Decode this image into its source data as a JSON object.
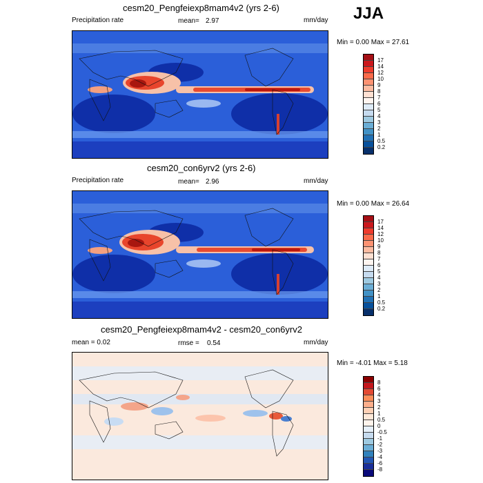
{
  "season": "JJA",
  "panels": [
    {
      "id": "exp",
      "title": "cesm20_Pengfeiexp8mam4v2 (yrs 2-6)",
      "left_label": "Precipitation rate",
      "mean_label": "mean=",
      "mean_value": "2.97",
      "units": "mm/day",
      "minmax": "Min =   0.00 Max =  27.61",
      "levels": [
        "17",
        "14",
        "12",
        "10",
        "9",
        "8",
        "7",
        "6",
        "5",
        "4",
        "3",
        "2",
        "1",
        "0.5",
        "0.2"
      ],
      "colors": [
        "#a50f15",
        "#cb181d",
        "#ef3b2c",
        "#fb6a4a",
        "#fc9272",
        "#fcbba1",
        "#fee0d2",
        "#fff5f0",
        "#deebf7",
        "#c6dbef",
        "#9ecae1",
        "#6baed6",
        "#4292c6",
        "#2171b5",
        "#08519c",
        "#08306b"
      ]
    },
    {
      "id": "ctl",
      "title": "cesm20_con6yrv2 (yrs 2-6)",
      "left_label": "Precipitation rate",
      "mean_label": "mean=",
      "mean_value": "2.96",
      "units": "mm/day",
      "minmax": "Min =   0.00 Max =  26.64",
      "levels": [
        "17",
        "14",
        "12",
        "10",
        "9",
        "8",
        "7",
        "6",
        "5",
        "4",
        "3",
        "2",
        "1",
        "0.5",
        "0.2"
      ],
      "colors": [
        "#a50f15",
        "#cb181d",
        "#ef3b2c",
        "#fb6a4a",
        "#fc9272",
        "#fcbba1",
        "#fee0d2",
        "#fff5f0",
        "#deebf7",
        "#c6dbef",
        "#9ecae1",
        "#6baed6",
        "#4292c6",
        "#2171b5",
        "#08519c",
        "#08306b"
      ]
    },
    {
      "id": "diff",
      "title": "cesm20_Pengfeiexp8mam4v2 - cesm20_con6yrv2",
      "left_label": "mean =   0.02",
      "mean_label": "rmse =",
      "mean_value": "0.54",
      "units": "mm/day",
      "minmax": "Min =  -4.01 Max =   5.18",
      "levels": [
        "8",
        "6",
        "4",
        "3",
        "2",
        "1",
        "0.5",
        "0",
        "-0.5",
        "-1",
        "-2",
        "-3",
        "-4",
        "-6",
        "-8"
      ],
      "colors": [
        "#8b0000",
        "#c4161c",
        "#e34a33",
        "#fc8d59",
        "#fdae8b",
        "#fdd0b5",
        "#fee8d8",
        "#fff4ec",
        "#e6f0fa",
        "#c6dbef",
        "#9ecae1",
        "#6baed6",
        "#3182bd",
        "#2256b4",
        "#1a2f9a",
        "#0a0a7a"
      ]
    }
  ]
}
